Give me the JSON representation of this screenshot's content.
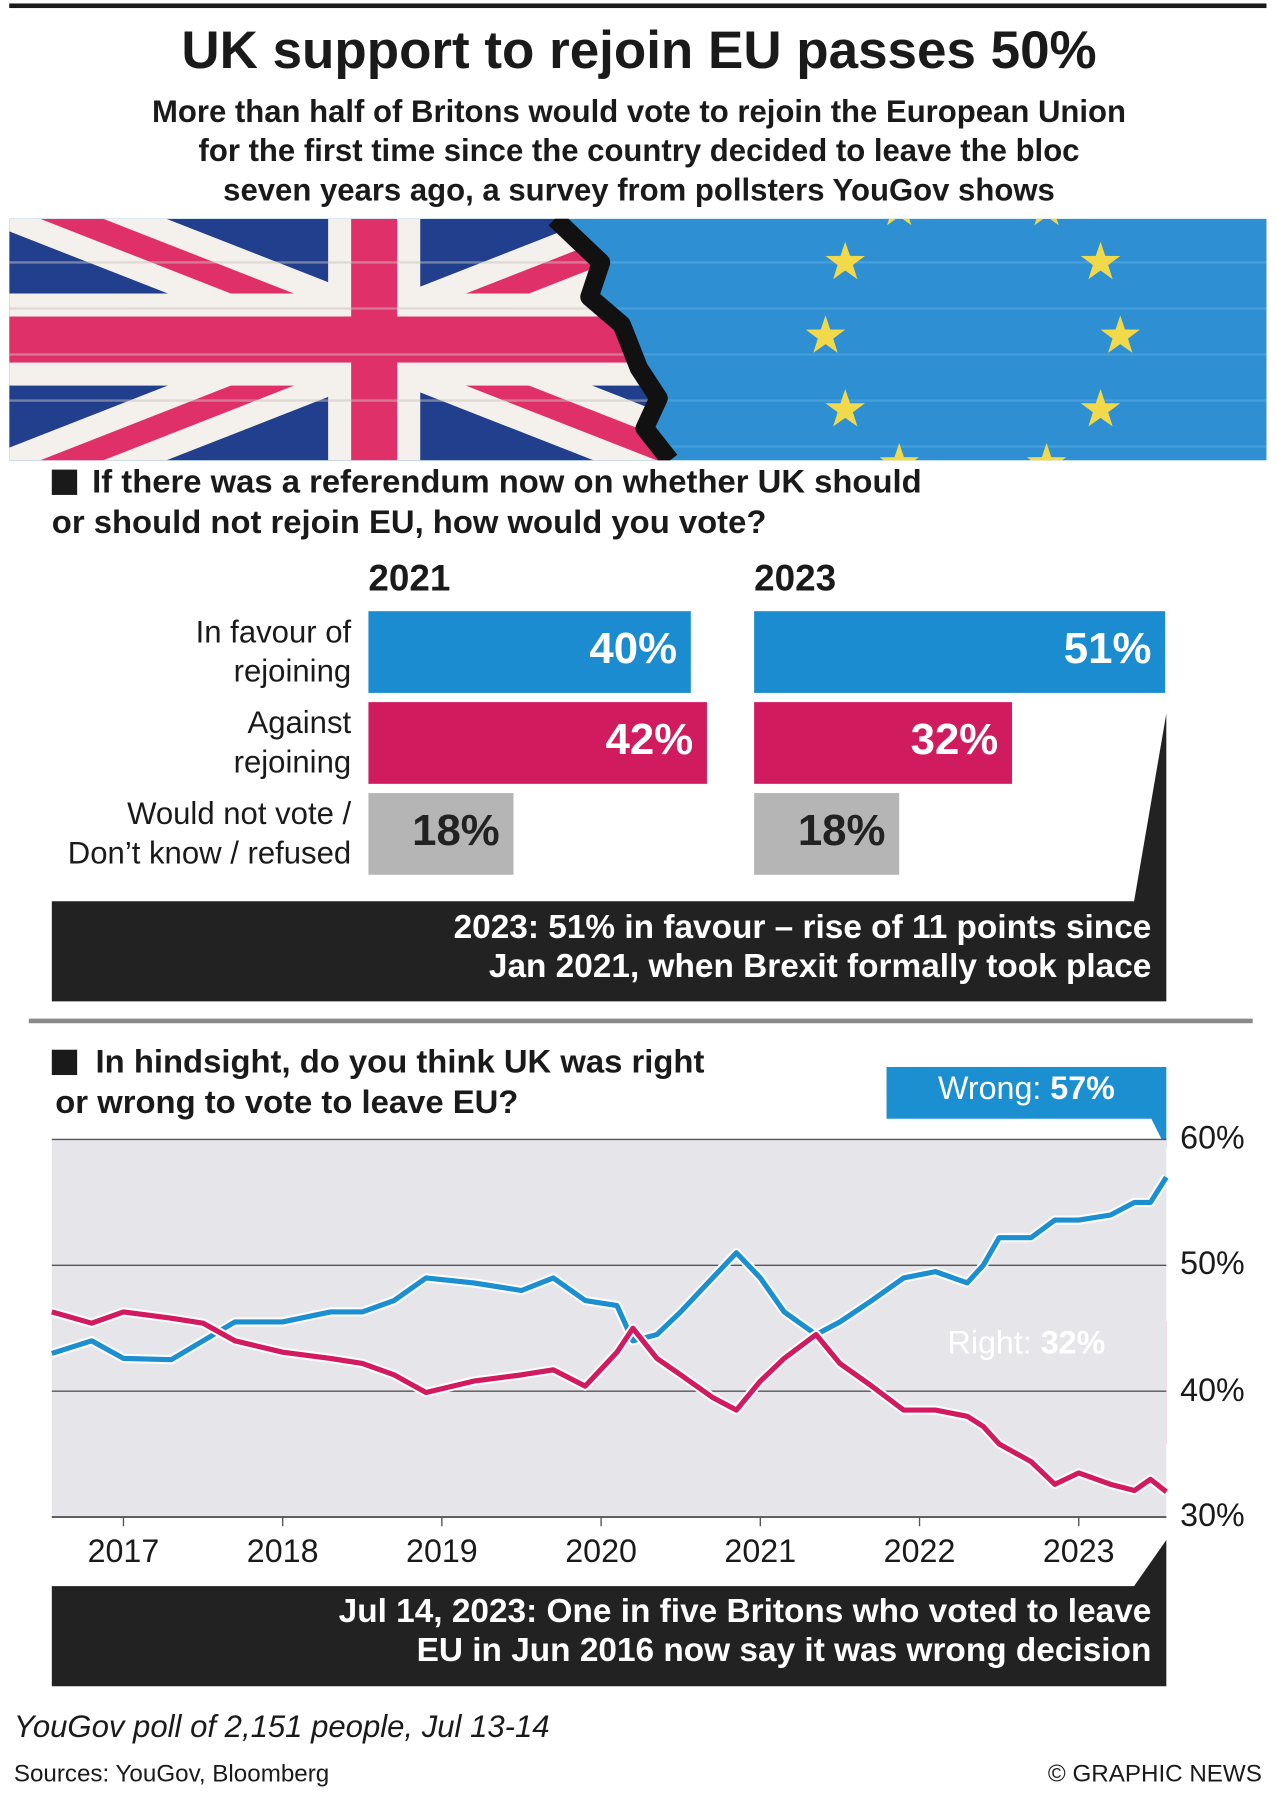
{
  "header": {
    "title": "UK support to rejoin EU passes 50%",
    "subtitle": "More than half of Britons would vote to rejoin the European Union\nfor the first time since the country decided to leave the bloc\nseven years ago, a survey from pollsters YouGov shows"
  },
  "chart_data": [
    {
      "type": "bar",
      "orientation": "horizontal",
      "title": "If there was a referendum now on whether UK should\nor should not rejoin EU, how would you vote?",
      "categories": [
        "In favour of\nrejoining",
        "Against\nrejoining",
        "Would not vote /\nDon’t know / refused"
      ],
      "category_colors": [
        "#1a8ccf",
        "#d01c5f",
        "#b5b5b5"
      ],
      "series": [
        {
          "name": "2021",
          "values": [
            40,
            42,
            18
          ],
          "value_labels": [
            "40%",
            "42%",
            "18%"
          ]
        },
        {
          "name": "2023",
          "values": [
            51,
            32,
            18
          ],
          "value_labels": [
            "51%",
            "32%",
            "18%"
          ]
        }
      ],
      "annotation": "2023: 51% in favour – rise of 11 points since\nJan 2021, when Brexit formally took place"
    },
    {
      "type": "line",
      "title": "In hindsight, do you think UK was right\nor wrong to vote to leave EU?",
      "x": [
        2016.55,
        2016.8,
        2017.0,
        2017.3,
        2017.5,
        2017.7,
        2018.0,
        2018.3,
        2018.5,
        2018.7,
        2018.9,
        2019.2,
        2019.5,
        2019.7,
        2019.9,
        2020.1,
        2020.2,
        2020.35,
        2020.5,
        2020.7,
        2020.85,
        2021.0,
        2021.15,
        2021.35,
        2021.5,
        2021.7,
        2021.9,
        2022.1,
        2022.3,
        2022.4,
        2022.5,
        2022.7,
        2022.85,
        2023.0,
        2023.2,
        2023.35,
        2023.45,
        2023.55
      ],
      "series": [
        {
          "name": "Wrong:",
          "color": "#1b8fd0",
          "end_label": "57%",
          "values": [
            43,
            44,
            42.6,
            42.5,
            44,
            45.5,
            45.5,
            46.3,
            46.3,
            47.2,
            49,
            48.6,
            48,
            49,
            47.2,
            46.8,
            44,
            44.5,
            46.3,
            49,
            51,
            49,
            46.3,
            44.5,
            45.5,
            47.2,
            49,
            49.5,
            48.6,
            50,
            52.2,
            52.2,
            53.6,
            53.6,
            54,
            55,
            55,
            57
          ]
        },
        {
          "name": "Right:",
          "color": "#d11a60",
          "end_label": "32%",
          "values": [
            46.3,
            45.4,
            46.3,
            45.8,
            45.4,
            44,
            43.1,
            42.6,
            42.2,
            41.3,
            39.9,
            40.8,
            41.3,
            41.7,
            40.4,
            43.1,
            45,
            42.6,
            41.3,
            39.5,
            38.5,
            40.8,
            42.6,
            44.5,
            42.2,
            40.4,
            38.5,
            38.5,
            38,
            37.2,
            35.8,
            34.4,
            32.6,
            33.5,
            32.6,
            32.1,
            33,
            32
          ]
        }
      ],
      "xlim": [
        2016.55,
        2023.55
      ],
      "xticks": [
        2017,
        2018,
        2019,
        2020,
        2021,
        2022,
        2023
      ],
      "ylim": [
        30,
        60
      ],
      "yticks": [
        {
          "value": 30,
          "label": "30%"
        },
        {
          "value": 40,
          "label": "40%"
        },
        {
          "value": 50,
          "label": "50%"
        },
        {
          "value": 60,
          "label": "60%"
        }
      ],
      "grid": true,
      "annotation": "Jul 14, 2023: One in five Britons who voted to leave\nEU in Jun 2016 now say it was wrong decision"
    }
  ],
  "footer": {
    "note": "YouGov poll of 2,151 people, Jul 13-14",
    "sources": "Sources: YouGov, Bloomberg",
    "credit": "© GRAPHIC NEWS"
  }
}
